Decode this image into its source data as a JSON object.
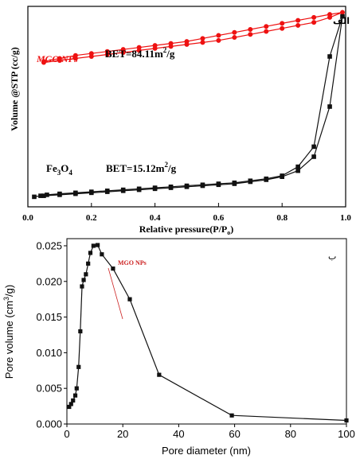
{
  "chart_data": [
    {
      "type": "line",
      "panel_label": "الف",
      "xlabel": "Relative pressure(P/P",
      "xlabel_sub": "o",
      "xlabel_end": ")",
      "ylabel": "Volume @STP (cc/g)",
      "xlim": [
        0.0,
        1.0
      ],
      "x_ticks": [
        "0.0",
        "0.2",
        "0.4",
        "0.6",
        "0.8",
        "1.0"
      ],
      "y_ticks": [],
      "series": [
        {
          "name": "MGO NPs",
          "color": "#ee1111",
          "marker": "circle",
          "annotation": {
            "prefix": "BET=84.11m",
            "sup": "2",
            "suffix": "/g"
          },
          "adsorption": [
            [
              0.05,
              0.72
            ],
            [
              0.1,
              0.73
            ],
            [
              0.15,
              0.74
            ],
            [
              0.2,
              0.75
            ],
            [
              0.25,
              0.76
            ],
            [
              0.3,
              0.77
            ],
            [
              0.35,
              0.78
            ],
            [
              0.4,
              0.79
            ],
            [
              0.45,
              0.8
            ],
            [
              0.5,
              0.81
            ],
            [
              0.55,
              0.82
            ],
            [
              0.6,
              0.83
            ],
            [
              0.65,
              0.845
            ],
            [
              0.7,
              0.86
            ],
            [
              0.75,
              0.875
            ],
            [
              0.8,
              0.89
            ],
            [
              0.85,
              0.905
            ],
            [
              0.9,
              0.92
            ],
            [
              0.95,
              0.945
            ],
            [
              0.99,
              0.97
            ]
          ],
          "desorption": [
            [
              0.99,
              0.97
            ],
            [
              0.95,
              0.96
            ],
            [
              0.9,
              0.945
            ],
            [
              0.85,
              0.93
            ],
            [
              0.8,
              0.915
            ],
            [
              0.75,
              0.9
            ],
            [
              0.7,
              0.885
            ],
            [
              0.65,
              0.87
            ],
            [
              0.6,
              0.855
            ],
            [
              0.55,
              0.84
            ],
            [
              0.5,
              0.825
            ],
            [
              0.45,
              0.815
            ],
            [
              0.4,
              0.805
            ],
            [
              0.35,
              0.795
            ],
            [
              0.3,
              0.785
            ],
            [
              0.25,
              0.775
            ],
            [
              0.2,
              0.765
            ],
            [
              0.15,
              0.755
            ],
            [
              0.1,
              0.74
            ],
            [
              0.05,
              0.725
            ]
          ]
        },
        {
          "name": "Fe3O4",
          "name_parts": {
            "base": "Fe",
            "sub1": "3",
            "mid": "O",
            "sub2": "4"
          },
          "color": "#111111",
          "marker": "square",
          "annotation": {
            "prefix": "BET=15.12m",
            "sup": "2",
            "suffix": "/g"
          },
          "adsorption": [
            [
              0.02,
              0.05
            ],
            [
              0.04,
              0.055
            ],
            [
              0.06,
              0.06
            ],
            [
              0.1,
              0.065
            ],
            [
              0.15,
              0.07
            ],
            [
              0.2,
              0.075
            ],
            [
              0.25,
              0.08
            ],
            [
              0.3,
              0.085
            ],
            [
              0.35,
              0.09
            ],
            [
              0.4,
              0.095
            ],
            [
              0.45,
              0.1
            ],
            [
              0.5,
              0.105
            ],
            [
              0.55,
              0.11
            ],
            [
              0.6,
              0.115
            ],
            [
              0.65,
              0.12
            ],
            [
              0.7,
              0.13
            ],
            [
              0.75,
              0.14
            ],
            [
              0.8,
              0.155
            ],
            [
              0.85,
              0.2
            ],
            [
              0.9,
              0.3
            ],
            [
              0.95,
              0.75
            ],
            [
              0.99,
              0.95
            ]
          ],
          "desorption": [
            [
              0.99,
              0.95
            ],
            [
              0.95,
              0.5
            ],
            [
              0.9,
              0.25
            ],
            [
              0.85,
              0.18
            ],
            [
              0.8,
              0.15
            ],
            [
              0.75,
              0.135
            ],
            [
              0.7,
              0.125
            ],
            [
              0.65,
              0.115
            ],
            [
              0.6,
              0.11
            ],
            [
              0.55,
              0.105
            ],
            [
              0.5,
              0.1
            ],
            [
              0.45,
              0.095
            ],
            [
              0.4,
              0.09
            ],
            [
              0.35,
              0.085
            ],
            [
              0.3,
              0.08
            ],
            [
              0.25,
              0.075
            ],
            [
              0.2,
              0.07
            ],
            [
              0.15,
              0.065
            ],
            [
              0.1,
              0.06
            ],
            [
              0.05,
              0.055
            ]
          ]
        }
      ]
    },
    {
      "type": "line",
      "panel_label": "ب",
      "xlabel": "Pore diameter (nm)",
      "ylabel": "Pore volume (cm",
      "ylabel_sup": "3",
      "ylabel_end": "/g)",
      "xlim": [
        0,
        100
      ],
      "ylim": [
        0.0,
        0.026
      ],
      "x_ticks": [
        "0",
        "20",
        "40",
        "60",
        "80",
        "100"
      ],
      "y_ticks": [
        "0.000",
        "0.005",
        "0.010",
        "0.015",
        "0.020",
        "0.025"
      ],
      "annotation": "MGO NPs",
      "series": [
        {
          "name": "MGO NPs",
          "color": "#111111",
          "marker": "square",
          "points": [
            [
              0.8,
              0.0024
            ],
            [
              1.5,
              0.0028
            ],
            [
              2.2,
              0.0033
            ],
            [
              3.0,
              0.004
            ],
            [
              3.5,
              0.005
            ],
            [
              4.2,
              0.008
            ],
            [
              4.8,
              0.013
            ],
            [
              5.4,
              0.0193
            ],
            [
              6.0,
              0.0202
            ],
            [
              6.8,
              0.021
            ],
            [
              7.6,
              0.0225
            ],
            [
              8.4,
              0.024
            ],
            [
              9.5,
              0.025
            ],
            [
              11.0,
              0.0251
            ],
            [
              12.5,
              0.0238
            ],
            [
              16.5,
              0.0218
            ],
            [
              22.5,
              0.0175
            ],
            [
              33.0,
              0.0069
            ],
            [
              59.0,
              0.0012
            ],
            [
              100.0,
              0.0005
            ]
          ]
        }
      ]
    }
  ]
}
